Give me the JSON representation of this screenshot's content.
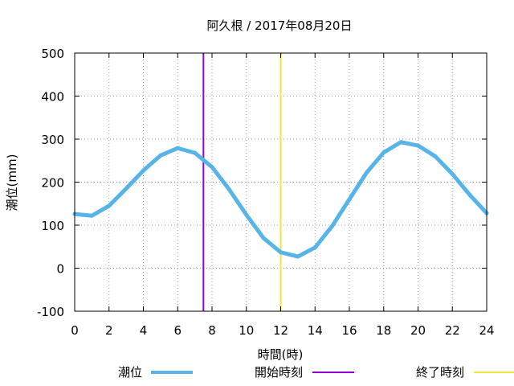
{
  "chart_data": {
    "type": "line",
    "title": "阿久根 / 2017年08月20日",
    "xlabel": "時間(時)",
    "ylabel": "潮位(mm)",
    "xlim": [
      0,
      24
    ],
    "ylim": [
      -100,
      500
    ],
    "xticks": [
      0,
      2,
      4,
      6,
      8,
      10,
      12,
      14,
      16,
      18,
      20,
      22,
      24
    ],
    "yticks": [
      -100,
      0,
      100,
      200,
      300,
      400,
      500
    ],
    "grid": true,
    "legend_position": "bottom",
    "series": [
      {
        "name": "潮位",
        "color": "#56b4e9",
        "x": [
          0,
          1,
          2,
          3,
          4,
          5,
          6,
          7,
          8,
          9,
          10,
          11,
          12,
          13,
          14,
          15,
          16,
          17,
          18,
          19,
          20,
          21,
          22,
          23,
          24
        ],
        "y": [
          126,
          122,
          145,
          185,
          227,
          262,
          279,
          268,
          235,
          183,
          124,
          70,
          37,
          27,
          48,
          98,
          160,
          222,
          269,
          293,
          285,
          260,
          219,
          171,
          128
        ]
      }
    ],
    "markers": [
      {
        "name": "開始時刻",
        "x": 7.5,
        "color": "#9400d3"
      },
      {
        "name": "終了時刻",
        "x": 12,
        "color": "#f0e442"
      }
    ]
  }
}
